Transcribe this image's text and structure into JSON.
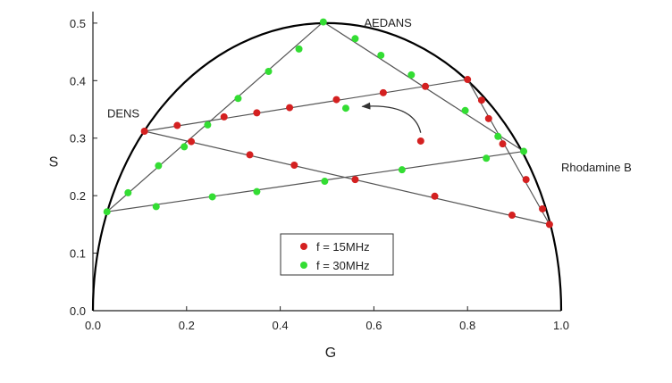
{
  "chart_data": {
    "type": "scatter",
    "xlabel": "G",
    "ylabel": "S",
    "xlim": [
      0.0,
      1.0
    ],
    "ylim": [
      0.0,
      0.52
    ],
    "x_ticks": [
      "0.0",
      "0.2",
      "0.4",
      "0.6",
      "0.8",
      "1.0"
    ],
    "y_ticks": [
      "0.0",
      "0.1",
      "0.2",
      "0.3",
      "0.4",
      "0.5"
    ],
    "grid": false,
    "legend_position": "bottom-center",
    "colors": {
      "red": "#d42020",
      "green": "#33dd33",
      "line": "#555555",
      "axis": "#222222"
    },
    "annotations": [
      {
        "text": "AEDANS",
        "x": 0.63,
        "y": 0.5
      },
      {
        "text": "DENS",
        "x": 0.065,
        "y": 0.342
      },
      {
        "text": "Rhodamine B",
        "x": 1.0,
        "y": 0.248
      }
    ],
    "arrow": {
      "from": [
        0.7,
        0.297
      ],
      "to": [
        0.56,
        0.355
      ]
    },
    "lines": [
      {
        "from": [
          0.03,
          0.172
        ],
        "to": [
          0.492,
          0.502
        ]
      },
      {
        "from": [
          0.492,
          0.502
        ],
        "to": [
          0.92,
          0.277
        ]
      },
      {
        "from": [
          0.11,
          0.312
        ],
        "to": [
          0.8,
          0.402
        ]
      },
      {
        "from": [
          0.11,
          0.312
        ],
        "to": [
          0.975,
          0.15
        ]
      },
      {
        "from": [
          0.03,
          0.172
        ],
        "to": [
          0.92,
          0.277
        ]
      },
      {
        "from": [
          0.8,
          0.402
        ],
        "to": [
          0.975,
          0.15
        ]
      }
    ],
    "series": [
      {
        "name": "f = 15MHz",
        "color": "#d42020",
        "points": [
          [
            0.11,
            0.312
          ],
          [
            0.18,
            0.322
          ],
          [
            0.21,
            0.294
          ],
          [
            0.28,
            0.337
          ],
          [
            0.35,
            0.344
          ],
          [
            0.42,
            0.353
          ],
          [
            0.52,
            0.367
          ],
          [
            0.62,
            0.379
          ],
          [
            0.71,
            0.39
          ],
          [
            0.8,
            0.402
          ],
          [
            0.83,
            0.366
          ],
          [
            0.845,
            0.334
          ],
          [
            0.875,
            0.29
          ],
          [
            0.925,
            0.228
          ],
          [
            0.96,
            0.177
          ],
          [
            0.975,
            0.15
          ],
          [
            0.895,
            0.166
          ],
          [
            0.73,
            0.199
          ],
          [
            0.56,
            0.228
          ],
          [
            0.43,
            0.253
          ],
          [
            0.335,
            0.271
          ],
          [
            0.7,
            0.295
          ]
        ]
      },
      {
        "name": "f = 30MHz",
        "color": "#33dd33",
        "points": [
          [
            0.03,
            0.172
          ],
          [
            0.075,
            0.205
          ],
          [
            0.14,
            0.252
          ],
          [
            0.195,
            0.285
          ],
          [
            0.245,
            0.323
          ],
          [
            0.31,
            0.369
          ],
          [
            0.375,
            0.416
          ],
          [
            0.44,
            0.455
          ],
          [
            0.492,
            0.502
          ],
          [
            0.56,
            0.473
          ],
          [
            0.615,
            0.444
          ],
          [
            0.68,
            0.41
          ],
          [
            0.795,
            0.348
          ],
          [
            0.865,
            0.303
          ],
          [
            0.92,
            0.277
          ],
          [
            0.84,
            0.265
          ],
          [
            0.66,
            0.245
          ],
          [
            0.495,
            0.225
          ],
          [
            0.35,
            0.207
          ],
          [
            0.255,
            0.198
          ],
          [
            0.135,
            0.181
          ],
          [
            0.54,
            0.352
          ]
        ]
      }
    ]
  }
}
